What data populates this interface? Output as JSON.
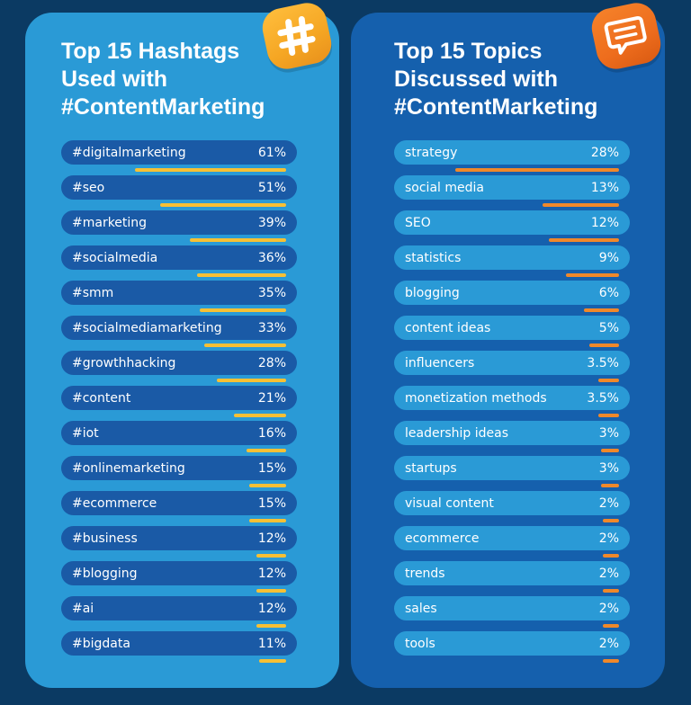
{
  "left_panel": {
    "title_lines": [
      "Top 15 Hashtags",
      "Used with",
      "#ContentMarketing"
    ],
    "badge_icon": "hashtag-icon",
    "accent_color": "#f7c034",
    "panel_color": "#2a9ad6",
    "pill_color": "#1a5aa6",
    "items": [
      {
        "label": "#digitalmarketing",
        "value": "61%",
        "pct": 61
      },
      {
        "label": "#seo",
        "value": "51%",
        "pct": 51
      },
      {
        "label": "#marketing",
        "value": "39%",
        "pct": 39
      },
      {
        "label": "#socialmedia",
        "value": "36%",
        "pct": 36
      },
      {
        "label": "#smm",
        "value": "35%",
        "pct": 35
      },
      {
        "label": "#socialmediamarketing",
        "value": "33%",
        "pct": 33
      },
      {
        "label": "#growthhacking",
        "value": "28%",
        "pct": 28
      },
      {
        "label": "#content",
        "value": "21%",
        "pct": 21
      },
      {
        "label": "#iot",
        "value": "16%",
        "pct": 16
      },
      {
        "label": "#onlinemarketing",
        "value": "15%",
        "pct": 15
      },
      {
        "label": "#ecommerce",
        "value": "15%",
        "pct": 15
      },
      {
        "label": "#business",
        "value": "12%",
        "pct": 12
      },
      {
        "label": "#blogging",
        "value": "12%",
        "pct": 12
      },
      {
        "label": "#ai",
        "value": "12%",
        "pct": 12
      },
      {
        "label": "#bigdata",
        "value": "11%",
        "pct": 11
      }
    ]
  },
  "right_panel": {
    "title_lines": [
      "Top 15 Topics",
      "Discussed with",
      "#ContentMarketing"
    ],
    "badge_icon": "chat-bubble-icon",
    "accent_color": "#f0882a",
    "panel_color": "#1560ad",
    "pill_color": "#2a9ad6",
    "items": [
      {
        "label": "strategy",
        "value": "28%",
        "pct": 28
      },
      {
        "label": "social media",
        "value": "13%",
        "pct": 13
      },
      {
        "label": "SEO",
        "value": "12%",
        "pct": 12
      },
      {
        "label": "statistics",
        "value": "9%",
        "pct": 9
      },
      {
        "label": "blogging",
        "value": "6%",
        "pct": 6
      },
      {
        "label": "content ideas",
        "value": "5%",
        "pct": 5
      },
      {
        "label": "influencers",
        "value": "3.5%",
        "pct": 3.5
      },
      {
        "label": "monetization methods",
        "value": "3.5%",
        "pct": 3.5
      },
      {
        "label": "leadership ideas",
        "value": "3%",
        "pct": 3
      },
      {
        "label": "startups",
        "value": "3%",
        "pct": 3
      },
      {
        "label": "visual content",
        "value": "2%",
        "pct": 2
      },
      {
        "label": "ecommerce",
        "value": "2%",
        "pct": 2
      },
      {
        "label": "trends",
        "value": "2%",
        "pct": 2
      },
      {
        "label": "sales",
        "value": "2%",
        "pct": 2
      },
      {
        "label": "tools",
        "value": "2%",
        "pct": 2
      }
    ]
  },
  "chart_data": [
    {
      "type": "bar",
      "orientation": "horizontal",
      "title": "Top 15 Hashtags Used with #ContentMarketing",
      "categories": [
        "#digitalmarketing",
        "#seo",
        "#marketing",
        "#socialmedia",
        "#smm",
        "#socialmediamarketing",
        "#growthhacking",
        "#content",
        "#iot",
        "#onlinemarketing",
        "#ecommerce",
        "#business",
        "#blogging",
        "#ai",
        "#bigdata"
      ],
      "values": [
        61,
        51,
        39,
        36,
        35,
        33,
        28,
        21,
        16,
        15,
        15,
        12,
        12,
        12,
        11
      ],
      "unit": "%",
      "xlabel": "",
      "ylabel": "",
      "grid": false,
      "legend": false,
      "bar_color": "#f7c034"
    },
    {
      "type": "bar",
      "orientation": "horizontal",
      "title": "Top 15 Topics Discussed with #ContentMarketing",
      "categories": [
        "strategy",
        "social media",
        "SEO",
        "statistics",
        "blogging",
        "content ideas",
        "influencers",
        "monetization methods",
        "leadership ideas",
        "startups",
        "visual content",
        "ecommerce",
        "trends",
        "sales",
        "tools"
      ],
      "values": [
        28,
        13,
        12,
        9,
        6,
        5,
        3.5,
        3.5,
        3,
        3,
        2,
        2,
        2,
        2,
        2
      ],
      "unit": "%",
      "xlabel": "",
      "ylabel": "",
      "grid": false,
      "legend": false,
      "bar_color": "#f0882a"
    }
  ]
}
